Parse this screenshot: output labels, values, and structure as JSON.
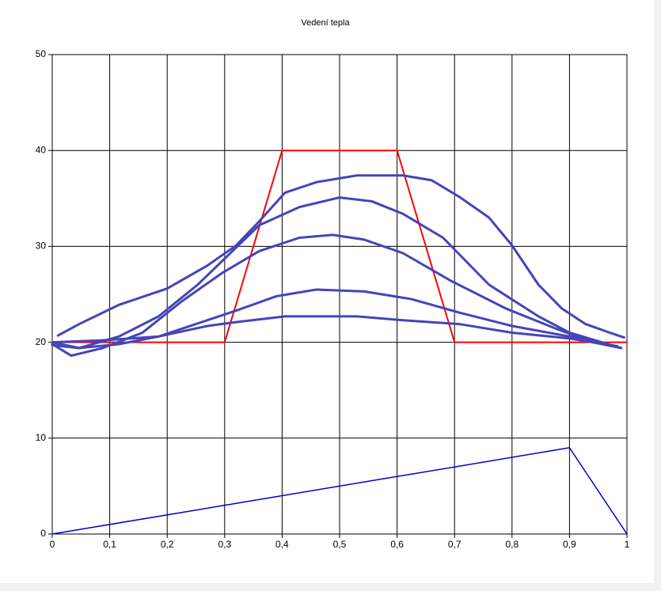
{
  "chart_data": {
    "type": "line",
    "title": "Vedení tepla",
    "xlim": [
      0,
      1
    ],
    "ylim": [
      0,
      50
    ],
    "xticks": [
      0,
      {
        "value": 0.1,
        "label": "0,1"
      },
      {
        "value": 0.2,
        "label": "0,2"
      },
      {
        "value": 0.3,
        "label": "0,3"
      },
      {
        "value": 0.4,
        "label": "0,4"
      },
      {
        "value": 0.5,
        "label": "0,5"
      },
      {
        "value": 0.6,
        "label": "0,6"
      },
      {
        "value": 0.7,
        "label": "0,7"
      },
      {
        "value": 0.8,
        "label": "0,8"
      },
      {
        "value": 0.9,
        "label": "0,9"
      },
      1
    ],
    "yticks": [
      0,
      10,
      20,
      30,
      40,
      50
    ],
    "grid": true,
    "series": [
      {
        "color": "#ff0000",
        "x": [
          0,
          0.3,
          0.4,
          0.6,
          0.7,
          1
        ],
        "values": [
          20,
          20,
          40,
          40,
          20,
          20
        ]
      },
      {
        "color": "#0000cc",
        "x": [
          0,
          0.9,
          1
        ],
        "values": [
          0,
          9,
          0
        ]
      },
      {
        "color": "#4444bb",
        "x": [
          0.01,
          0.047,
          0.116,
          0.2,
          0.27,
          0.32,
          0.36,
          0.405,
          0.46,
          0.53,
          0.61,
          0.66,
          0.71,
          0.76,
          0.8,
          0.846,
          0.887,
          0.928,
          0.97,
          0.995
        ],
        "values": [
          20.7,
          21.9,
          23.9,
          25.6,
          28,
          30.1,
          32.6,
          35.6,
          36.7,
          37.4,
          37.4,
          36.9,
          35.1,
          33,
          30.1,
          26,
          23.5,
          21.9,
          21,
          20.5
        ]
      },
      {
        "color": "#4444bb",
        "x": [
          0,
          0.047,
          0.116,
          0.185,
          0.253,
          0.31,
          0.36,
          0.43,
          0.5,
          0.556,
          0.61,
          0.68,
          0.76,
          0.846,
          0.9,
          0.956,
          0.99
        ],
        "values": [
          19.7,
          19.4,
          20.6,
          22.7,
          26,
          29.3,
          32.2,
          34.1,
          35.1,
          34.7,
          33.4,
          30.9,
          26,
          22.7,
          21,
          20,
          19.4
        ]
      },
      {
        "color": "#4444bb",
        "x": [
          0,
          0.033,
          0.088,
          0.157,
          0.226,
          0.295,
          0.36,
          0.43,
          0.488,
          0.543,
          0.61,
          0.694,
          0.79,
          0.873,
          0.94,
          0.99
        ],
        "values": [
          19.8,
          18.6,
          19.4,
          21,
          24.3,
          27.2,
          29.5,
          30.9,
          31.2,
          30.7,
          29.3,
          26.4,
          23.5,
          21.5,
          20,
          19.4
        ]
      },
      {
        "color": "#4444bb",
        "x": [
          0,
          0.047,
          0.116,
          0.185,
          0.27,
          0.32,
          0.39,
          0.46,
          0.543,
          0.625,
          0.708,
          0.8,
          0.9,
          0.97
        ],
        "values": [
          20,
          19.4,
          19.8,
          20.6,
          22.3,
          23.3,
          24.8,
          25.5,
          25.3,
          24.5,
          23.1,
          21.7,
          20.6,
          19.7
        ]
      },
      {
        "color": "#4444bb",
        "x": [
          0,
          0.088,
          0.185,
          0.27,
          0.32,
          0.405,
          0.53,
          0.61,
          0.708,
          0.8,
          0.9,
          0.983
        ],
        "values": [
          20,
          20.2,
          20.6,
          21.7,
          22.1,
          22.7,
          22.7,
          22.3,
          21.9,
          21,
          20.4,
          19.6
        ]
      }
    ]
  }
}
